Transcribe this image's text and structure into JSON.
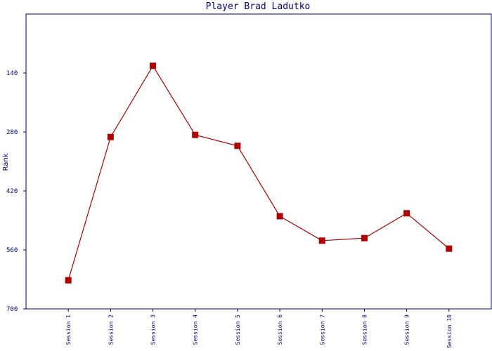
{
  "chart_data": {
    "type": "line",
    "title": "Player Brad Ladutko",
    "y_label": "Rank",
    "categories": [
      "Session 1",
      "Session 2",
      "Session 3",
      "Session 4",
      "Session 5",
      "Session 6",
      "Session 7",
      "Session 8",
      "Session 9",
      "Session 10"
    ],
    "series": [
      {
        "name": "Rank",
        "color": "#b00000",
        "values": [
          632,
          292,
          123,
          287,
          313,
          480,
          538,
          532,
          473,
          557
        ]
      }
    ],
    "ylim": [
      700,
      0
    ],
    "yticks": [
      140,
      280,
      420,
      560,
      700
    ]
  }
}
